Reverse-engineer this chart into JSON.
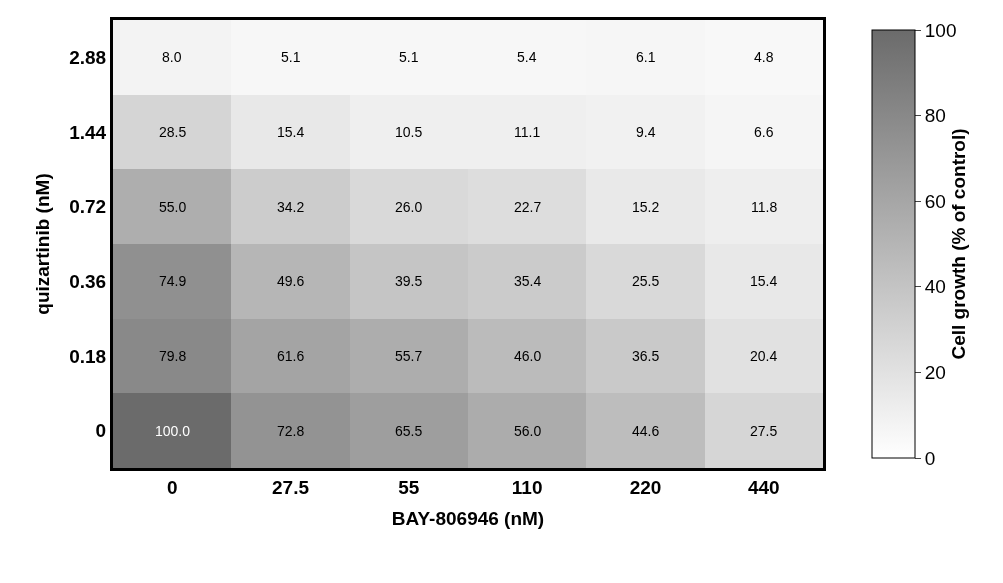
{
  "chart_data": {
    "type": "heatmap",
    "xlabel": "BAY-806946 (nM)",
    "ylabel": "quizartinib (nM)",
    "clabel": "Cell growth (% of control)",
    "categories": [
      "0",
      "27.5",
      "55",
      "110",
      "220",
      "440"
    ],
    "y_categories": [
      "2.88",
      "1.44",
      "0.72",
      "0.36",
      "0.18",
      "0"
    ],
    "cells": [
      [
        8.0,
        5.1,
        5.1,
        5.4,
        6.1,
        4.8
      ],
      [
        28.5,
        15.4,
        10.5,
        11.1,
        9.4,
        6.6
      ],
      [
        55.0,
        34.2,
        26.0,
        22.7,
        15.2,
        11.8
      ],
      [
        74.9,
        49.6,
        39.5,
        35.4,
        25.5,
        15.4
      ],
      [
        79.8,
        61.6,
        55.7,
        46.0,
        36.5,
        20.4
      ],
      [
        100.0,
        72.8,
        65.5,
        56.0,
        44.6,
        27.5
      ]
    ],
    "cell_labels": [
      [
        "8.0",
        "5.1",
        "5.1",
        "5.4",
        "6.1",
        "4.8"
      ],
      [
        "28.5",
        "15.4",
        "10.5",
        "11.1",
        "9.4",
        "6.6"
      ],
      [
        "55.0",
        "34.2",
        "26.0",
        "22.7",
        "15.2",
        "11.8"
      ],
      [
        "74.9",
        "49.6",
        "39.5",
        "35.4",
        "25.5",
        "15.4"
      ],
      [
        "79.8",
        "61.6",
        "55.7",
        "46.0",
        "36.5",
        "20.4"
      ],
      [
        "100.0",
        "72.8",
        "65.5",
        "56.0",
        "44.6",
        "27.5"
      ]
    ],
    "clim": [
      0,
      100
    ],
    "cticks": [
      0,
      20,
      40,
      60,
      80,
      100
    ]
  }
}
